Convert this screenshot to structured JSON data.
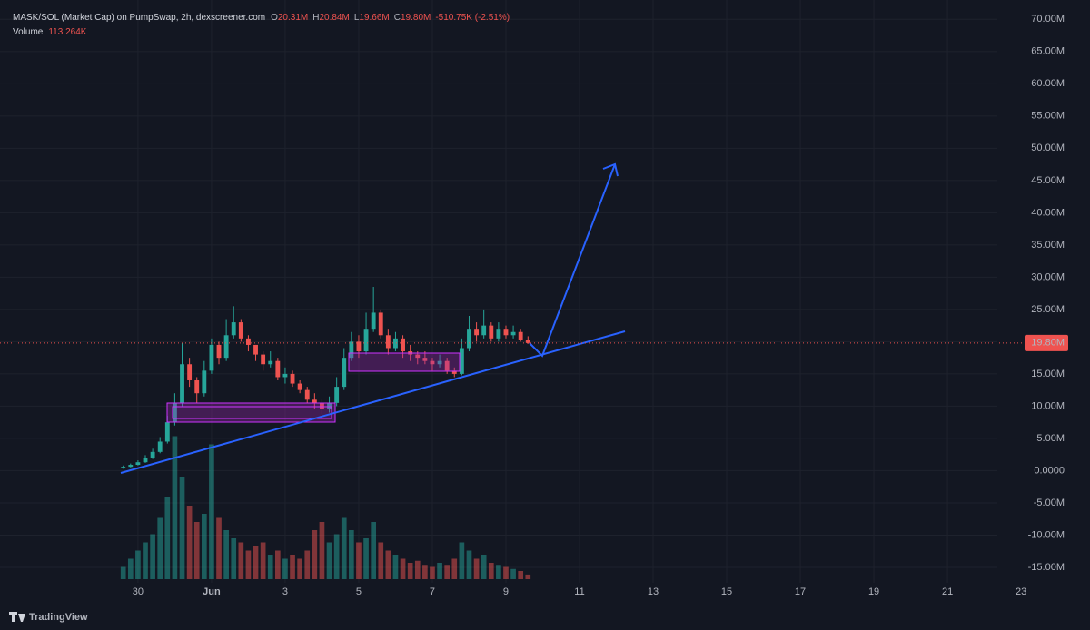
{
  "chart_data": {
    "type": "candlestick",
    "legend": {
      "symbol": "MASK/SOL (Market Cap) on PumpSwap, 2h, dexscreener.com",
      "o_key": "O",
      "o": "20.31M",
      "h_key": "H",
      "h": "20.84M",
      "l_key": "L",
      "l": "19.66M",
      "c_key": "C",
      "c": "19.80M",
      "change": "-510.75K (-2.51%)",
      "volume_key": "Volume",
      "volume": "113.264K"
    },
    "brand": "TradingView",
    "x": [
      -1.4,
      -1.2,
      -1.0,
      -0.8,
      -0.6,
      -0.4,
      -0.2,
      0.0,
      0.2,
      0.4,
      0.6,
      0.8,
      1.0,
      1.2,
      1.4,
      1.6,
      1.8,
      2.0,
      2.2,
      2.4,
      2.6,
      2.8,
      3.0,
      3.2,
      3.4,
      3.6,
      3.8,
      4.0,
      4.2,
      4.4,
      4.6,
      4.8,
      5.0,
      5.2,
      5.4,
      5.6,
      5.8,
      6.0,
      6.2,
      6.4,
      6.6,
      6.8,
      7.0,
      7.2,
      7.4,
      7.6,
      7.8,
      8.0,
      8.2,
      8.4,
      8.6,
      8.8,
      9.0,
      9.2,
      9.4,
      9.6
    ],
    "open": [
      0.4,
      0.6,
      0.9,
      1.3,
      2.0,
      2.9,
      4.5,
      7.5,
      10.5,
      16.5,
      14.0,
      12.0,
      15.5,
      19.5,
      17.5,
      21.0,
      23.0,
      20.5,
      19.5,
      18.0,
      16.5,
      17.0,
      14.5,
      15.0,
      13.5,
      12.5,
      11.0,
      10.5,
      9.5,
      10.5,
      13.0,
      17.5,
      20.0,
      18.5,
      22.0,
      24.5,
      21.0,
      19.0,
      20.5,
      18.5,
      18.0,
      17.5,
      17.0,
      16.5,
      17.0,
      15.5,
      15.0,
      19.0,
      22.0,
      21.0,
      22.5,
      20.5,
      22.0,
      21.0,
      21.5,
      20.31
    ],
    "high": [
      0.8,
      1.1,
      1.6,
      2.4,
      3.4,
      5.2,
      8.5,
      12.0,
      19.8,
      17.5,
      14.5,
      17.0,
      20.5,
      20.0,
      23.5,
      25.5,
      23.5,
      21.0,
      19.5,
      18.5,
      18.5,
      17.5,
      16.0,
      15.5,
      14.0,
      13.0,
      12.0,
      11.0,
      11.5,
      14.5,
      19.0,
      21.5,
      21.0,
      24.5,
      28.5,
      25.0,
      22.0,
      21.5,
      21.0,
      19.5,
      18.5,
      18.5,
      17.5,
      18.0,
      17.5,
      16.0,
      20.5,
      24.0,
      23.0,
      25.0,
      23.0,
      23.0,
      22.5,
      22.5,
      22.0,
      20.84
    ],
    "low": [
      0.3,
      0.5,
      0.8,
      1.2,
      1.8,
      2.7,
      4.2,
      7.0,
      10.0,
      13.0,
      10.5,
      11.5,
      15.0,
      16.5,
      17.0,
      20.5,
      20.0,
      18.5,
      17.0,
      15.5,
      16.0,
      14.0,
      13.5,
      13.0,
      12.0,
      10.5,
      9.5,
      8.8,
      9.0,
      10.0,
      12.5,
      17.0,
      17.5,
      18.0,
      21.5,
      20.5,
      18.0,
      18.5,
      17.5,
      17.0,
      16.5,
      16.5,
      15.5,
      16.0,
      15.0,
      14.5,
      14.8,
      18.5,
      20.0,
      20.5,
      20.0,
      20.0,
      20.5,
      20.5,
      20.0,
      19.66
    ],
    "close": [
      0.6,
      0.9,
      1.3,
      2.0,
      2.9,
      4.5,
      7.5,
      10.5,
      16.5,
      14.0,
      12.0,
      15.5,
      19.5,
      17.5,
      21.0,
      23.0,
      20.5,
      19.5,
      18.0,
      16.5,
      17.0,
      14.5,
      15.0,
      13.5,
      12.5,
      11.0,
      10.5,
      9.5,
      10.5,
      13.0,
      17.5,
      20.0,
      18.5,
      22.0,
      24.5,
      21.0,
      19.0,
      20.5,
      18.5,
      18.0,
      17.5,
      17.0,
      16.5,
      17.0,
      15.5,
      15.0,
      19.0,
      22.0,
      21.0,
      22.5,
      20.5,
      22.0,
      21.0,
      21.5,
      20.31,
      19.8
    ],
    "volume": [
      300,
      500,
      700,
      900,
      1100,
      1500,
      2000,
      3500,
      2500,
      1800,
      1400,
      1600,
      3300,
      1500,
      1200,
      1000,
      900,
      700,
      800,
      900,
      600,
      700,
      500,
      600,
      500,
      700,
      1200,
      1400,
      900,
      1100,
      1500,
      1200,
      900,
      1000,
      1400,
      900,
      700,
      600,
      500,
      400,
      450,
      350,
      300,
      400,
      350,
      500,
      900,
      700,
      500,
      600,
      400,
      350,
      300,
      250,
      200,
      113.264
    ],
    "volume_ylim": [
      0,
      4000
    ],
    "up_color": "#26a69a",
    "down_color": "#ef5350",
    "last_price": {
      "value": 19.8,
      "label": "19.80M"
    },
    "xlim": [
      -4.75,
      24.38
    ],
    "xticks": [
      {
        "value": -1,
        "label": "30"
      },
      {
        "value": 1,
        "label": "Jun"
      },
      3,
      5,
      7,
      9,
      11,
      13,
      15,
      17,
      19,
      21,
      23
    ],
    "ylim": [
      -17.4,
      73
    ],
    "yticks": [
      {
        "value": 70,
        "label": "70.00M"
      },
      {
        "value": 65,
        "label": "65.00M"
      },
      {
        "value": 60,
        "label": "60.00M"
      },
      {
        "value": 55,
        "label": "55.00M"
      },
      {
        "value": 50,
        "label": "50.00M"
      },
      {
        "value": 45,
        "label": "45.00M"
      },
      {
        "value": 40,
        "label": "40.00M"
      },
      {
        "value": 35,
        "label": "35.00M"
      },
      {
        "value": 30,
        "label": "30.00M"
      },
      {
        "value": 25,
        "label": "25.00M"
      },
      {
        "value": 20,
        "label": "20.00M"
      },
      {
        "value": 15,
        "label": "15.00M"
      },
      {
        "value": 10,
        "label": "10.00M"
      },
      {
        "value": 5,
        "label": "5.00M"
      },
      {
        "value": 0,
        "label": "0.0000"
      },
      {
        "value": -5,
        "label": "-5.00M"
      },
      {
        "value": -10,
        "label": "-10.00M"
      },
      {
        "value": -15,
        "label": "-15.00M"
      }
    ],
    "grid": true
  }
}
